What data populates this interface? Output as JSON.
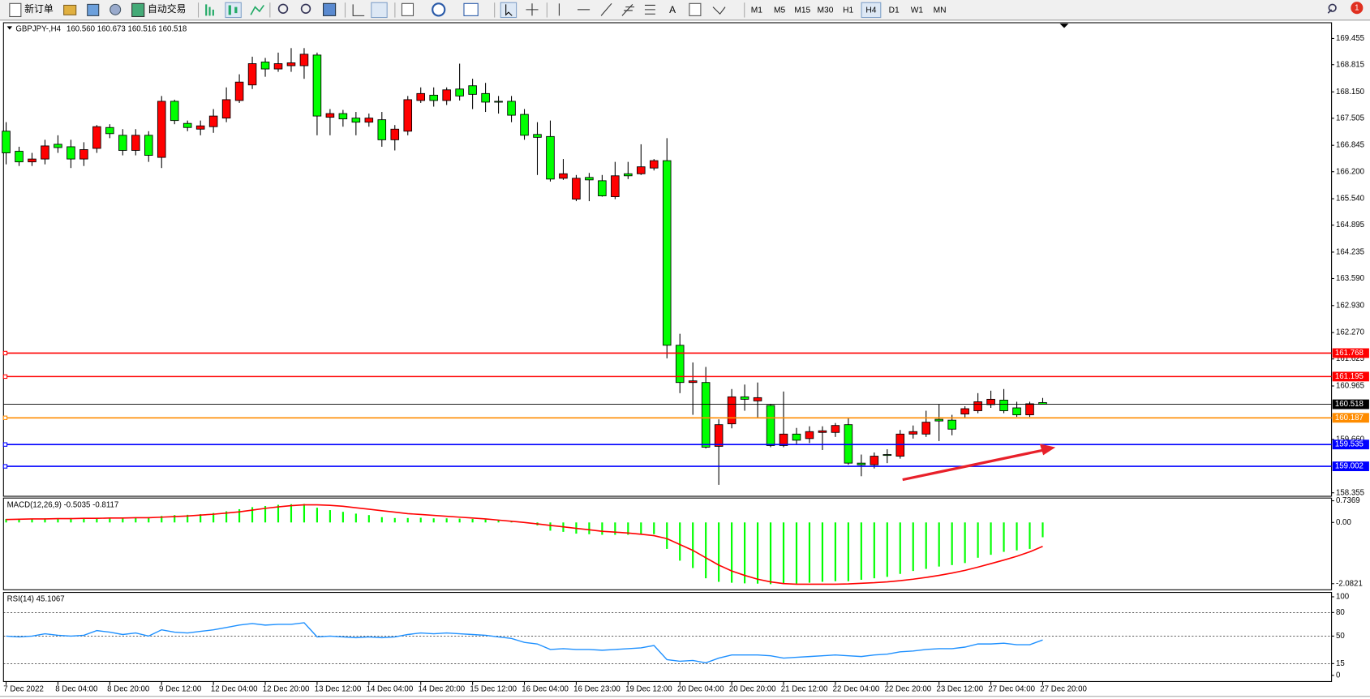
{
  "toolbar": {
    "new_order": "新订单",
    "auto_trading": "自动交易",
    "text_tool": "A",
    "timeframes": [
      "M1",
      "M5",
      "M15",
      "M30",
      "H1",
      "H4",
      "D1",
      "W1",
      "MN"
    ],
    "notifications": 1
  },
  "header": {
    "symbol": "GBPJPY-,H4",
    "ohlc": [
      "160.560",
      "160.673",
      "160.516",
      "160.518"
    ]
  },
  "chart_data": {
    "type": "candlestick",
    "up_color": "#ff0000",
    "down_color": "#00ff00",
    "categories": [
      "7 Dec 2022",
      null,
      null,
      null,
      "8 Dec 04:00",
      null,
      null,
      null,
      "8 Dec 20:00",
      null,
      null,
      null,
      "9 Dec 12:00",
      null,
      null,
      null,
      "12 Dec 04:00",
      null,
      null,
      null,
      "12 Dec 20:00",
      null,
      null,
      null,
      "13 Dec 12:00",
      null,
      null,
      null,
      "14 Dec 04:00",
      null,
      null,
      null,
      "14 Dec 20:00",
      null,
      null,
      null,
      "15 Dec 12:00",
      null,
      null,
      null,
      "16 Dec 04:00",
      null,
      null,
      null,
      "16 Dec 23:00",
      null,
      null,
      null,
      "19 Dec 12:00",
      null,
      null,
      null,
      "20 Dec 04:00",
      null,
      null,
      null,
      "20 Dec 20:00",
      null,
      null,
      null,
      "21 Dec 12:00",
      null,
      null,
      null,
      "22 Dec 04:00",
      null,
      null,
      null,
      "22 Dec 20:00",
      null,
      null,
      null,
      "23 Dec 12:00",
      null,
      null,
      null,
      "27 Dec 04:00",
      null,
      null,
      null,
      "27 Dec 20:00"
    ],
    "open": [
      167.19,
      166.7,
      166.44,
      166.51,
      166.87,
      166.81,
      166.51,
      166.77,
      167.28,
      167.09,
      166.72,
      167.09,
      166.55,
      167.92,
      167.38,
      167.24,
      167.3,
      167.51,
      167.94,
      168.32,
      168.88,
      168.71,
      168.79,
      168.79,
      169.05,
      167.53,
      167.62,
      167.51,
      167.41,
      167.47,
      166.98,
      167.19,
      167.94,
      168.07,
      167.94,
      168.22,
      168.3,
      168.11,
      167.92,
      167.92,
      167.6,
      167.11,
      167.06,
      166.04,
      165.53,
      166.06,
      165.98,
      165.59,
      166.15,
      166.15,
      166.29,
      166.47,
      161.96,
      161.05,
      161.05,
      159.49,
      160.04,
      160.7,
      160.6,
      160.49,
      159.51,
      159.79,
      159.68,
      159.83,
      159.83,
      160.02,
      159.08,
      159.04,
      159.29,
      159.25,
      159.79,
      159.79,
      160.15,
      160.13,
      160.28,
      160.36,
      160.51,
      160.62,
      160.43,
      160.26,
      160.56
    ],
    "high": [
      167.41,
      166.81,
      166.66,
      166.98,
      167.09,
      166.98,
      166.92,
      167.34,
      167.36,
      167.24,
      167.24,
      167.19,
      168.05,
      167.96,
      167.45,
      167.45,
      167.73,
      168.26,
      168.58,
      169.01,
      168.98,
      169.11,
      169.22,
      169.22,
      169.11,
      167.73,
      167.71,
      167.66,
      167.62,
      167.66,
      167.34,
      168.05,
      168.26,
      168.26,
      168.26,
      168.84,
      168.47,
      168.37,
      168.05,
      168.05,
      167.73,
      167.41,
      167.45,
      166.51,
      166.12,
      166.17,
      166.12,
      166.44,
      166.44,
      166.87,
      166.51,
      167.02,
      162.24,
      161.54,
      161.43,
      160.15,
      160.89,
      161.0,
      161.05,
      160.53,
      160.83,
      159.94,
      159.98,
      159.98,
      160.06,
      160.19,
      159.29,
      159.34,
      159.42,
      159.89,
      160.0,
      160.36,
      160.51,
      160.26,
      160.47,
      160.79,
      160.85,
      160.89,
      160.58,
      160.58,
      160.673
    ],
    "low": [
      166.38,
      166.34,
      166.34,
      166.38,
      166.66,
      166.29,
      166.34,
      166.66,
      167.02,
      166.6,
      166.6,
      166.44,
      166.29,
      167.36,
      167.19,
      167.09,
      167.15,
      167.41,
      167.88,
      168.22,
      168.52,
      168.64,
      168.64,
      168.47,
      167.09,
      167.09,
      167.3,
      167.09,
      167.3,
      166.81,
      166.72,
      167.09,
      167.88,
      167.79,
      167.83,
      167.94,
      167.73,
      167.66,
      167.62,
      167.41,
      166.98,
      166.12,
      165.96,
      166.0,
      165.48,
      165.48,
      165.59,
      165.53,
      166.02,
      166.12,
      166.23,
      161.64,
      160.79,
      160.26,
      159.44,
      158.55,
      159.93,
      160.36,
      160.19,
      159.47,
      159.47,
      159.55,
      159.57,
      159.4,
      159.72,
      159.04,
      158.76,
      158.95,
      159.08,
      159.19,
      159.68,
      159.72,
      159.62,
      159.76,
      160.19,
      160.3,
      160.43,
      160.3,
      160.21,
      160.21,
      160.516
    ],
    "close": [
      166.66,
      166.44,
      166.51,
      166.83,
      166.79,
      166.51,
      166.74,
      167.3,
      167.13,
      166.72,
      167.09,
      166.6,
      167.92,
      167.45,
      167.28,
      167.32,
      167.56,
      167.96,
      168.39,
      168.84,
      168.71,
      168.84,
      168.86,
      169.07,
      167.56,
      167.62,
      167.49,
      167.41,
      167.51,
      166.98,
      167.24,
      167.96,
      168.11,
      167.94,
      168.2,
      168.05,
      168.09,
      167.9,
      167.9,
      167.58,
      167.09,
      167.04,
      166.02,
      166.15,
      166.04,
      166.0,
      165.61,
      166.1,
      166.1,
      166.32,
      166.47,
      161.96,
      161.05,
      161.09,
      159.47,
      160.02,
      160.7,
      160.64,
      160.68,
      159.51,
      159.79,
      159.64,
      159.85,
      159.87,
      160.0,
      159.08,
      159.04,
      159.25,
      159.27,
      159.79,
      159.85,
      160.08,
      160.11,
      159.91,
      160.41,
      160.58,
      160.64,
      160.36,
      160.26,
      160.53,
      160.518
    ],
    "ylim": [
      158.27,
      169.84
    ],
    "yticks": [
      169.455,
      168.815,
      {
        "value": 168.15,
        "label": "168.150"
      },
      167.505,
      166.845,
      {
        "value": 166.2,
        "label": "166.200"
      },
      {
        "value": 165.54,
        "label": "165.540"
      },
      164.895,
      164.235,
      {
        "value": 163.59,
        "label": "163.590"
      },
      {
        "value": 162.93,
        "label": "162.930"
      },
      {
        "value": 162.27,
        "label": "162.270"
      },
      161.625,
      160.965,
      {
        "value": 159.66,
        "label": "159.660"
      },
      158.355
    ],
    "levels": [
      {
        "value": 161.768,
        "color": "#ff0000"
      },
      {
        "value": 161.195,
        "color": "#ff0000"
      },
      {
        "value": 160.518,
        "color": "#000000"
      },
      {
        "value": 160.187,
        "color": "#ff8c00"
      },
      {
        "value": 159.535,
        "color": "#0000ff"
      },
      {
        "value": 159.002,
        "color": "#0000ff"
      }
    ],
    "macd": {
      "label": "MACD(12,26,9) -0.5035 -0.8117",
      "color": "#00ff00",
      "signal_color": "#ff0000",
      "histogram": [
        0.12,
        0.13,
        0.13,
        0.14,
        0.14,
        0.15,
        0.15,
        0.16,
        0.16,
        0.17,
        0.17,
        0.18,
        0.22,
        0.25,
        0.26,
        0.28,
        0.32,
        0.38,
        0.45,
        0.52,
        0.56,
        0.6,
        0.62,
        0.63,
        0.5,
        0.42,
        0.36,
        0.3,
        0.25,
        0.18,
        0.15,
        0.15,
        0.16,
        0.14,
        0.14,
        0.13,
        0.12,
        0.1,
        0.08,
        0.04,
        -0.02,
        -0.1,
        -0.28,
        -0.32,
        -0.38,
        -0.4,
        -0.42,
        -0.42,
        -0.42,
        -0.4,
        -0.4,
        -0.9,
        -1.3,
        -1.55,
        -1.9,
        -2.02,
        -2.05,
        -2.07,
        -2.08,
        -2.1,
        -2.1,
        -2.08,
        -2.05,
        -2.02,
        -2.0,
        -2.0,
        -1.95,
        -1.9,
        -1.85,
        -1.75,
        -1.65,
        -1.58,
        -1.5,
        -1.45,
        -1.38,
        -1.2,
        -1.1,
        -1.0,
        -0.95,
        -0.9,
        -0.5035
      ],
      "signal": [
        0.1,
        0.11,
        0.12,
        0.12,
        0.13,
        0.13,
        0.14,
        0.14,
        0.15,
        0.15,
        0.16,
        0.16,
        0.18,
        0.2,
        0.22,
        0.25,
        0.28,
        0.32,
        0.36,
        0.42,
        0.48,
        0.53,
        0.57,
        0.6,
        0.6,
        0.58,
        0.55,
        0.5,
        0.45,
        0.4,
        0.35,
        0.3,
        0.27,
        0.24,
        0.21,
        0.18,
        0.15,
        0.12,
        0.08,
        0.04,
        0.0,
        -0.05,
        -0.1,
        -0.15,
        -0.2,
        -0.25,
        -0.3,
        -0.33,
        -0.36,
        -0.4,
        -0.45,
        -0.55,
        -0.75,
        -0.95,
        -1.2,
        -1.45,
        -1.65,
        -1.8,
        -1.93,
        -2.02,
        -2.08,
        -2.1,
        -2.1,
        -2.1,
        -2.1,
        -2.09,
        -2.07,
        -2.05,
        -2.02,
        -1.98,
        -1.93,
        -1.87,
        -1.8,
        -1.72,
        -1.63,
        -1.52,
        -1.4,
        -1.28,
        -1.15,
        -1.0,
        -0.8117
      ],
      "ylim": [
        -2.29,
        0.83
      ],
      "yticks": [
        0.7369,
        {
          "value": 0,
          "label": "0.00"
        },
        -2.0821
      ]
    },
    "rsi": {
      "label": "RSI(14) 45.1067",
      "color": "#1e90ff",
      "values": [
        50,
        49,
        50,
        53,
        51,
        50,
        51,
        57,
        55,
        52,
        54,
        50,
        58,
        55,
        54,
        56,
        58,
        61,
        64,
        66,
        64,
        65,
        65,
        67,
        49,
        50,
        49,
        48,
        49,
        48,
        49,
        52,
        54,
        53,
        54,
        53,
        52,
        51,
        49,
        47,
        42,
        40,
        33,
        34,
        33,
        33,
        32,
        33,
        34,
        35,
        38,
        20,
        18,
        19,
        16,
        22,
        26,
        26,
        26,
        25,
        22,
        23,
        24,
        25,
        26,
        25,
        24,
        26,
        27,
        30,
        31,
        33,
        34,
        34,
        36,
        40,
        40,
        41,
        39,
        39,
        45.1067
      ],
      "ylim": [
        -7.8,
        105.6
      ],
      "yticks": [
        100,
        80,
        50,
        15,
        0
      ]
    }
  }
}
